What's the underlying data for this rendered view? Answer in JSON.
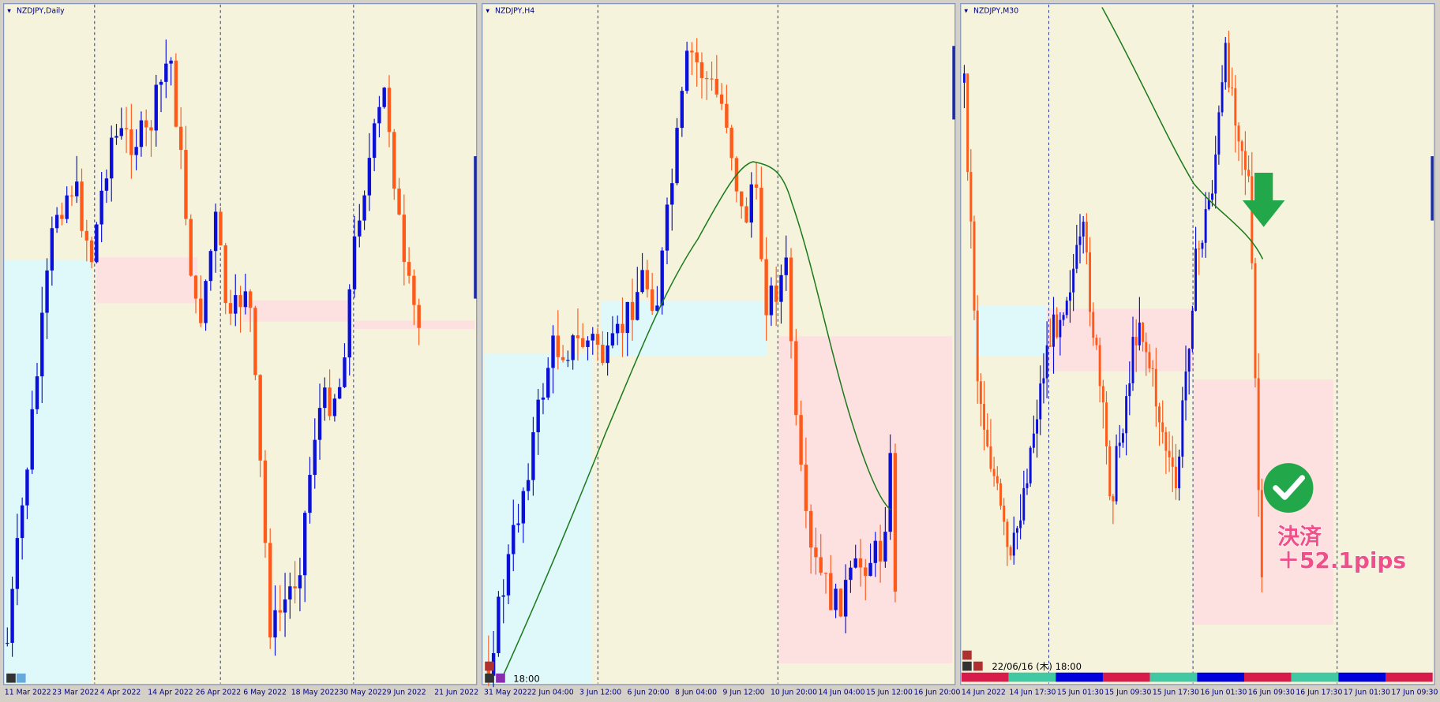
{
  "panels": [
    {
      "title": "NZDJPY,Daily",
      "x_labels": [
        "11 Mar 2022",
        "23 Mar 2022",
        "4 Apr 2022",
        "14 Apr 2022",
        "26 Apr 2022",
        "6 May 2022",
        "18 May 2022",
        "30 May 2022",
        "9 Jun 2022",
        "21 Jun 2022"
      ]
    },
    {
      "title": "NZDJPY,H4",
      "x_labels": [
        "31 May 2022",
        "2 Jun 04:00",
        "3 Jun 12:00",
        "6 Jun 20:00",
        "8 Jun 04:00",
        "9 Jun 12:00",
        "10 Jun 20:00",
        "14 Jun 04:00",
        "15 Jun 12:00",
        "16 Jun 20:00"
      ],
      "cursor_time": "18:00"
    },
    {
      "title": "NZDJPY,M30",
      "x_labels": [
        "14 Jun 2022",
        "14 Jun 17:30",
        "15 Jun 01:30",
        "15 Jun 09:30",
        "15 Jun 17:30",
        "16 Jun 01:30",
        "16 Jun 09:30",
        "16 Jun 17:30",
        "17 Jun 01:30",
        "17 Jun 09:30"
      ],
      "cursor_time": "22/06/16 (木) 18:00",
      "annotation": {
        "label": "決済",
        "result": "＋52.1pips"
      }
    }
  ]
}
